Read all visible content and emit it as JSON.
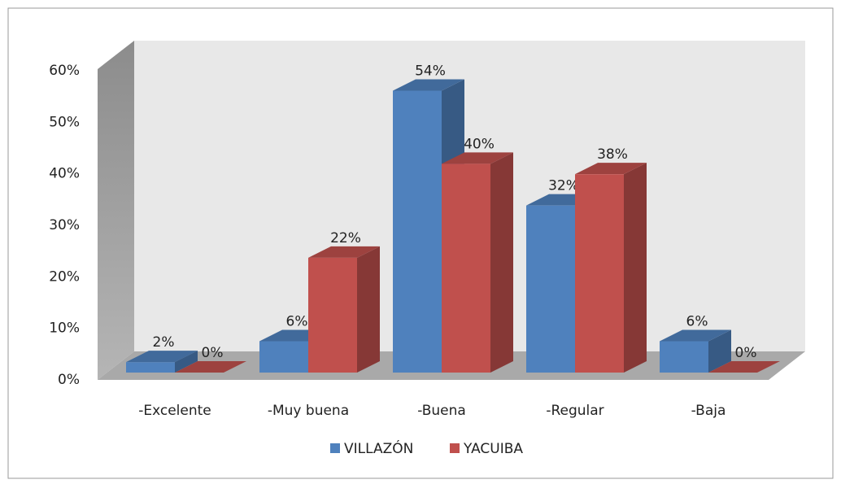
{
  "chart_data": {
    "type": "bar3d",
    "categories": [
      "-Excelente",
      "-Muy buena",
      "-Buena",
      "-Regular",
      "-Baja"
    ],
    "series": [
      {
        "name": "VILLAZÓN",
        "color": "#4f81bd",
        "values": [
          2,
          6,
          54,
          32,
          6
        ],
        "value_labels": [
          "2%",
          "6%",
          "54%",
          "32%",
          "6%"
        ]
      },
      {
        "name": "YACUIBA",
        "color": "#c0504d",
        "values": [
          0,
          22,
          40,
          38,
          0
        ],
        "value_labels": [
          "0%",
          "22%",
          "40%",
          "38%",
          "0%"
        ]
      }
    ],
    "ylim": [
      0,
      60
    ],
    "yticks": [
      {
        "value": 0,
        "label": "0%"
      },
      {
        "value": 10,
        "label": "10%"
      },
      {
        "value": 20,
        "label": "20%"
      },
      {
        "value": 30,
        "label": "30%"
      },
      {
        "value": 40,
        "label": "40%"
      },
      {
        "value": 50,
        "label": "50%"
      },
      {
        "value": 60,
        "label": "60%"
      }
    ],
    "legend": "bottom"
  }
}
